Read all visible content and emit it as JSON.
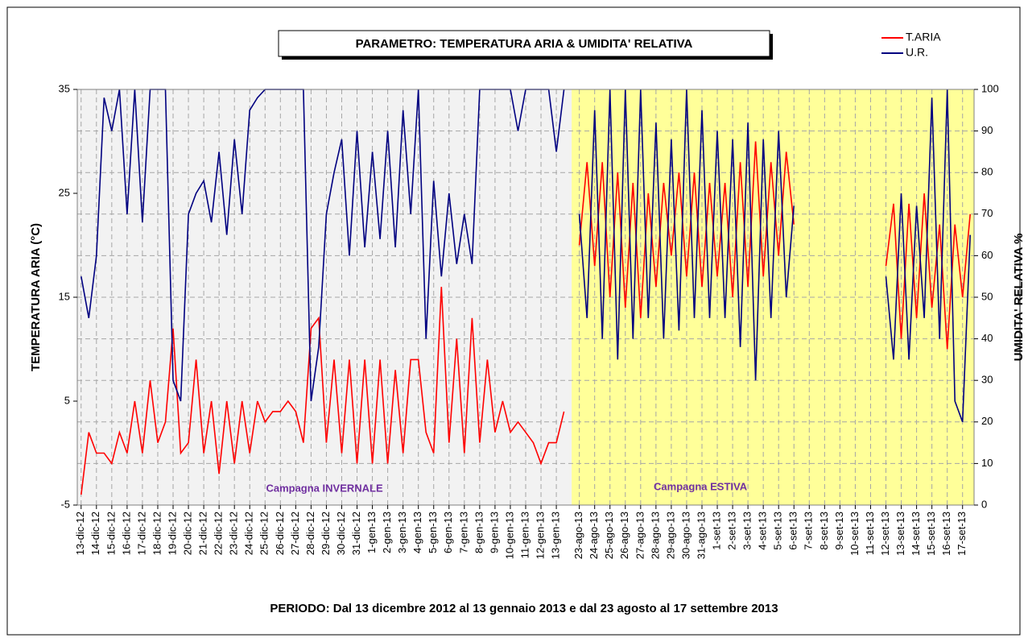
{
  "chart_data": {
    "type": "line",
    "title": "PARAMETRO: TEMPERATURA ARIA & UMIDITA' RELATIVA",
    "x_label": "PERIODO: Dal 13 dicembre 2012 al 13 gennaio 2013 e dal 23 agosto al 17 settembre 2013",
    "y_label": "TEMPERATURA ARIA (°C)",
    "y2_label": "UMIDITA' RELATIVA %",
    "annotations": [
      "Campagna INVERNALE",
      "Campagna ESTIVA"
    ],
    "categories": [
      "13-dic-12",
      null,
      "14-dic-12",
      null,
      "15-dic-12",
      null,
      "16-dic-12",
      null,
      "17-dic-12",
      null,
      "18-dic-12",
      null,
      "19-dic-12",
      null,
      "20-dic-12",
      null,
      "21-dic-12",
      null,
      "22-dic-12",
      null,
      "23-dic-12",
      null,
      "24-dic-12",
      null,
      "25-dic-12",
      null,
      "26-dic-12",
      null,
      "27-dic-12",
      null,
      "28-dic-12",
      null,
      "29-dic-12",
      null,
      "30-dic-12",
      null,
      "31-dic-12",
      null,
      "1-gen-13",
      null,
      "2-gen-13",
      null,
      "3-gen-13",
      null,
      "4-gen-13",
      null,
      "5-gen-13",
      null,
      "6-gen-13",
      null,
      "7-gen-13",
      null,
      "8-gen-13",
      null,
      "9-gen-13",
      null,
      "10-gen-13",
      null,
      "11-gen-13",
      null,
      "12-gen-13",
      null,
      "13-gen-13",
      null,
      null,
      "23-ago-13",
      null,
      "24-ago-13",
      null,
      "25-ago-13",
      null,
      "26-ago-13",
      null,
      "27-ago-13",
      null,
      "28-ago-13",
      null,
      "29-ago-13",
      null,
      "30-ago-13",
      null,
      "31-ago-13",
      null,
      "1-set-13",
      null,
      "2-set-13",
      null,
      "3-set-13",
      null,
      "4-set-13",
      null,
      "5-set-13",
      null,
      "6-set-13",
      null,
      "7-set-13",
      null,
      "8-set-13",
      null,
      "9-set-13",
      null,
      "10-set-13",
      null,
      "11-set-13",
      null,
      "12-set-13",
      null,
      "13-set-13",
      null,
      "14-set-13",
      null,
      "15-set-13",
      null,
      "16-set-13",
      null,
      "17-set-13",
      null
    ],
    "series": [
      {
        "name": "T.ARIA",
        "color": "#ff0000",
        "axis": "y",
        "values": [
          -4,
          2,
          0,
          0,
          -1,
          2,
          0,
          5,
          0,
          7,
          1,
          3,
          12,
          0,
          1,
          9,
          0,
          5,
          -2,
          5,
          -1,
          5,
          0,
          5,
          3,
          4,
          4,
          5,
          4,
          1,
          12,
          13,
          1,
          9,
          0,
          9,
          -1,
          9,
          -1,
          9,
          -1,
          8,
          0,
          9,
          9,
          2,
          0,
          16,
          1,
          11,
          0,
          13,
          1,
          9,
          2,
          5,
          2,
          3,
          2,
          1,
          -1,
          1,
          1,
          4,
          null,
          20,
          28,
          18,
          28,
          15,
          27,
          14,
          26,
          13,
          25,
          16,
          26,
          19,
          27,
          17,
          27,
          16,
          26,
          17,
          26,
          15,
          28,
          16,
          30,
          17,
          28,
          19,
          29,
          22,
          null,
          null,
          null,
          null,
          null,
          null,
          null,
          null,
          null,
          null,
          null,
          18,
          24,
          11,
          24,
          13,
          25,
          14,
          22,
          10,
          22,
          15,
          23
        ]
      },
      {
        "name": "U.R.",
        "color": "#000080",
        "axis": "y2",
        "values": [
          55,
          45,
          60,
          98,
          90,
          100,
          70,
          100,
          68,
          100,
          100,
          100,
          30,
          25,
          70,
          75,
          78,
          68,
          85,
          65,
          88,
          70,
          95,
          98,
          100,
          100,
          100,
          100,
          100,
          100,
          25,
          38,
          70,
          80,
          88,
          60,
          90,
          62,
          85,
          64,
          90,
          62,
          95,
          70,
          100,
          40,
          78,
          55,
          75,
          58,
          70,
          58,
          100,
          100,
          100,
          100,
          100,
          90,
          100,
          100,
          100,
          100,
          85,
          100,
          null,
          70,
          45,
          95,
          40,
          100,
          35,
          100,
          40,
          100,
          45,
          92,
          40,
          88,
          42,
          100,
          45,
          95,
          45,
          90,
          45,
          88,
          38,
          92,
          30,
          88,
          45,
          90,
          50,
          72,
          null,
          null,
          null,
          null,
          null,
          null,
          null,
          null,
          null,
          null,
          null,
          55,
          35,
          75,
          35,
          72,
          45,
          98,
          40,
          100,
          25,
          20,
          65
        ]
      }
    ],
    "ylim": [
      -5,
      35
    ],
    "yticks": [
      -5,
      5,
      15,
      25,
      35
    ],
    "y2lim": [
      0,
      100
    ],
    "y2ticks": [
      0,
      10,
      20,
      30,
      40,
      50,
      60,
      70,
      80,
      90,
      100
    ],
    "grid": true,
    "legend": "top-right"
  }
}
